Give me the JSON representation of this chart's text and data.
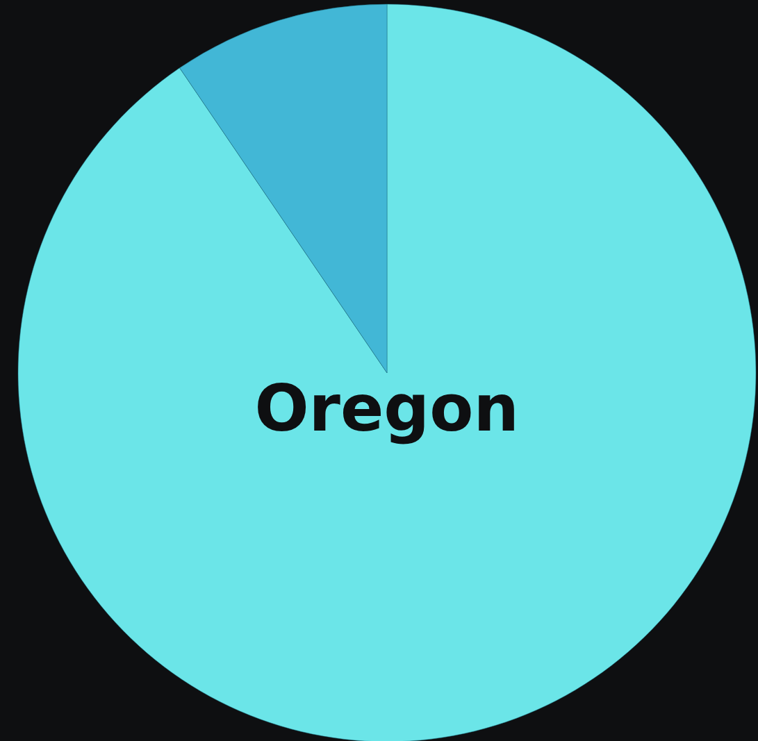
{
  "chart_data": {
    "type": "pie",
    "categories": [
      "Oregon",
      null
    ],
    "values": [
      90.5,
      9.5
    ],
    "colors": [
      "#6be5e8",
      "#42b7d6"
    ]
  }
}
